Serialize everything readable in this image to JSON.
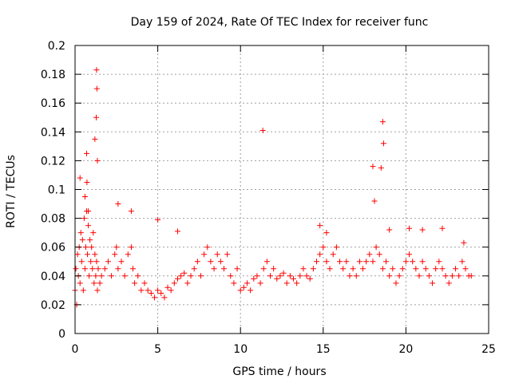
{
  "chart_data": {
    "type": "scatter",
    "title": "Day 159 of 2024, Rate Of TEC Index for receiver func",
    "xlabel": "GPS time / hours",
    "ylabel": "ROTI / TECUs",
    "xlim": [
      0,
      25
    ],
    "ylim": [
      0,
      0.2
    ],
    "x_ticks": [
      0,
      5,
      10,
      15,
      20,
      25
    ],
    "x_tick_labels": [
      "0",
      "5",
      "10",
      "15",
      "20",
      "25"
    ],
    "y_ticks": [
      0,
      0.02,
      0.04,
      0.06,
      0.08,
      0.1,
      0.12,
      0.14,
      0.16,
      0.18,
      0.2
    ],
    "y_tick_labels": [
      "0",
      "0.02",
      "0.04",
      "0.06",
      "0.08",
      "0.1",
      "0.12",
      "0.14",
      "0.16",
      "0.18",
      "0.2"
    ],
    "grid": true,
    "marker": "plus",
    "series": [
      {
        "name": "ROTI",
        "color": "#ff0000",
        "x": [
          0.0,
          0.05,
          0.1,
          0.15,
          0.2,
          0.25,
          0.3,
          0.35,
          0.4,
          0.45,
          0.5,
          0.55,
          0.6,
          0.65,
          0.7,
          0.75,
          0.8,
          0.85,
          0.9,
          0.95,
          1.0,
          1.05,
          1.1,
          1.15,
          1.2,
          1.25,
          1.3,
          1.35,
          1.4,
          1.5,
          1.6,
          1.8,
          2.0,
          2.2,
          2.4,
          2.5,
          2.6,
          2.8,
          3.0,
          3.2,
          3.4,
          3.5,
          3.6,
          3.8,
          4.0,
          4.2,
          4.4,
          4.6,
          4.8,
          5.0,
          5.2,
          5.4,
          5.6,
          5.8,
          6.0,
          6.2,
          6.4,
          6.6,
          6.8,
          7.0,
          7.2,
          7.4,
          7.6,
          7.8,
          8.0,
          8.2,
          8.4,
          8.6,
          8.8,
          9.0,
          9.2,
          9.4,
          9.6,
          9.8,
          10.0,
          10.2,
          10.4,
          10.6,
          10.8,
          11.0,
          11.2,
          11.4,
          11.6,
          11.8,
          12.0,
          12.2,
          12.4,
          12.6,
          12.8,
          13.0,
          13.2,
          13.4,
          13.6,
          13.8,
          14.0,
          14.2,
          14.4,
          14.6,
          14.8,
          15.0,
          15.2,
          15.4,
          15.6,
          15.8,
          16.0,
          16.2,
          16.4,
          16.6,
          16.8,
          17.0,
          17.2,
          17.4,
          17.6,
          17.8,
          18.0,
          18.2,
          18.4,
          18.6,
          18.8,
          19.0,
          19.2,
          19.4,
          19.6,
          19.8,
          20.0,
          20.2,
          20.4,
          20.6,
          20.8,
          21.0,
          21.2,
          21.4,
          21.6,
          21.8,
          22.0,
          22.2,
          22.4,
          22.6,
          22.8,
          23.0,
          23.2,
          23.4,
          23.6,
          23.8,
          23.95,
          0.3,
          0.6,
          1.2,
          1.28,
          1.3,
          1.32,
          0.7,
          0.72,
          0.8,
          1.35,
          11.35,
          18.0,
          18.6,
          18.65,
          18.5,
          18.1,
          2.6,
          3.4,
          5.0,
          6.2,
          14.8,
          15.2,
          19.0,
          20.2,
          21.0,
          22.2,
          23.5
        ],
        "y": [
          0.03,
          0.045,
          0.02,
          0.055,
          0.04,
          0.06,
          0.035,
          0.07,
          0.05,
          0.065,
          0.03,
          0.08,
          0.045,
          0.06,
          0.085,
          0.055,
          0.075,
          0.04,
          0.065,
          0.05,
          0.06,
          0.045,
          0.07,
          0.035,
          0.055,
          0.04,
          0.05,
          0.03,
          0.045,
          0.035,
          0.04,
          0.045,
          0.05,
          0.04,
          0.055,
          0.06,
          0.045,
          0.05,
          0.04,
          0.055,
          0.06,
          0.045,
          0.035,
          0.04,
          0.03,
          0.035,
          0.03,
          0.028,
          0.025,
          0.03,
          0.028,
          0.025,
          0.032,
          0.03,
          0.035,
          0.038,
          0.04,
          0.042,
          0.035,
          0.04,
          0.045,
          0.05,
          0.04,
          0.055,
          0.06,
          0.05,
          0.045,
          0.055,
          0.05,
          0.045,
          0.055,
          0.04,
          0.035,
          0.045,
          0.03,
          0.032,
          0.035,
          0.03,
          0.038,
          0.04,
          0.035,
          0.045,
          0.05,
          0.04,
          0.045,
          0.038,
          0.04,
          0.042,
          0.035,
          0.04,
          0.038,
          0.035,
          0.04,
          0.045,
          0.04,
          0.038,
          0.045,
          0.05,
          0.055,
          0.06,
          0.05,
          0.045,
          0.055,
          0.06,
          0.05,
          0.045,
          0.05,
          0.04,
          0.045,
          0.04,
          0.05,
          0.045,
          0.05,
          0.055,
          0.05,
          0.06,
          0.055,
          0.045,
          0.05,
          0.04,
          0.045,
          0.035,
          0.04,
          0.045,
          0.05,
          0.055,
          0.05,
          0.045,
          0.04,
          0.05,
          0.045,
          0.04,
          0.035,
          0.045,
          0.05,
          0.045,
          0.04,
          0.035,
          0.04,
          0.045,
          0.04,
          0.05,
          0.045,
          0.04,
          0.04,
          0.108,
          0.095,
          0.135,
          0.15,
          0.183,
          0.17,
          0.125,
          0.105,
          0.085,
          0.12,
          0.141,
          0.116,
          0.147,
          0.132,
          0.115,
          0.092,
          0.09,
          0.085,
          0.079,
          0.071,
          0.075,
          0.07,
          0.072,
          0.073,
          0.072,
          0.073,
          0.063
        ]
      }
    ]
  }
}
